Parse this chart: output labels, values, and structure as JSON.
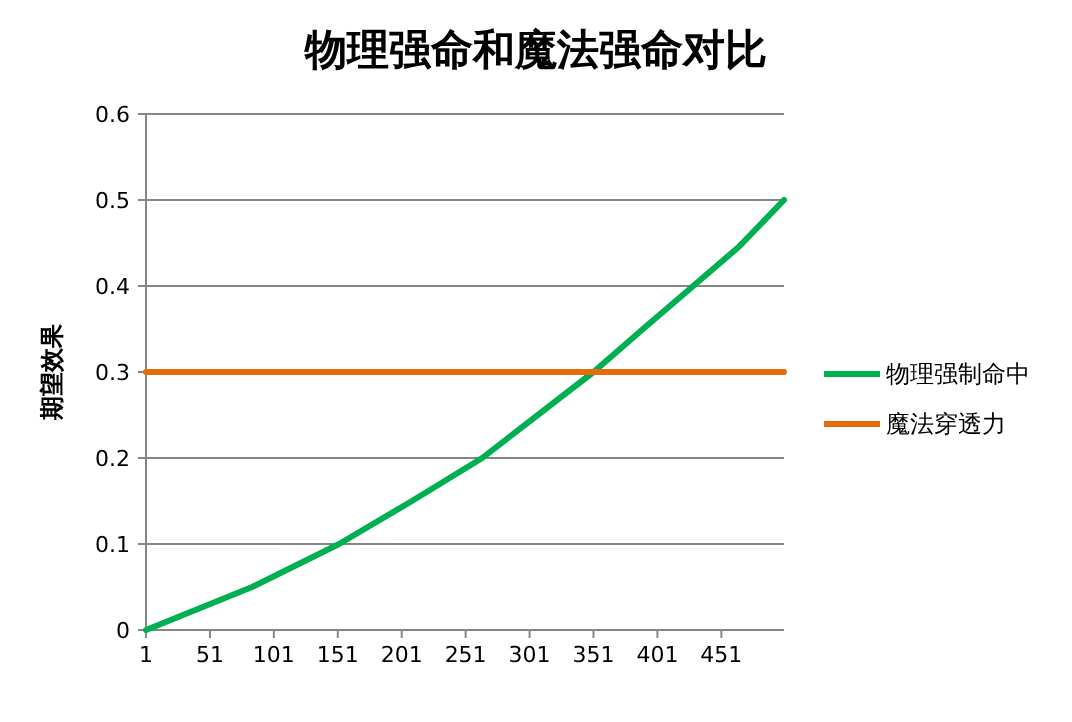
{
  "chart_data": {
    "type": "line",
    "title": "物理强命和魔法强命对比",
    "ylabel": "期望效果",
    "xlim": [
      1,
      500
    ],
    "xticks": [
      1,
      51,
      101,
      151,
      201,
      251,
      301,
      351,
      401,
      451
    ],
    "ylim": [
      0,
      0.6
    ],
    "yticks": [
      0,
      0.1,
      0.2,
      0.3,
      0.4,
      0.5,
      0.6
    ],
    "grid": "y",
    "legend": "right",
    "marker": "none",
    "line_style": "solid",
    "series": [
      {
        "name": "物理强制命中",
        "color": "#00b050",
        "x": [
          1,
          84,
          152,
          209,
          264,
          303,
          351,
          392,
          429,
          465,
          500
        ],
        "values": [
          0,
          0.05,
          0.1,
          0.15,
          0.2,
          0.245,
          0.3,
          0.353,
          0.4,
          0.446,
          0.5
        ]
      },
      {
        "name": "魔法穿透力",
        "color": "#e46c0a",
        "x": [
          1,
          500
        ],
        "values": [
          0.3,
          0.3
        ]
      }
    ]
  }
}
